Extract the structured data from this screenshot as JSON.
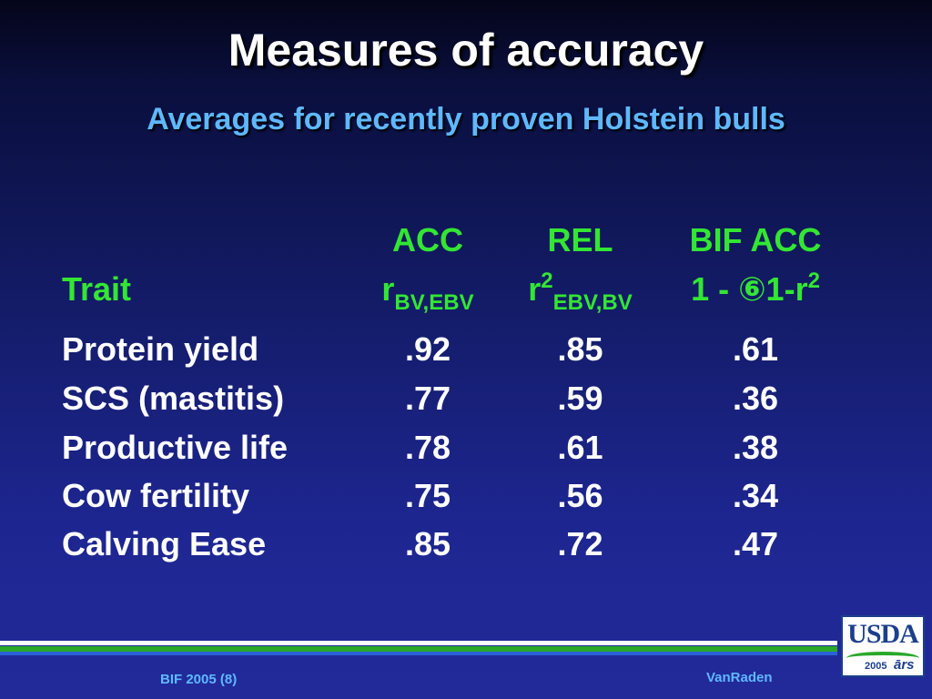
{
  "slide": {
    "title": "Measures of accuracy",
    "subtitle": "Averages for recently proven Holstein bulls"
  },
  "table": {
    "headers": {
      "col1": {
        "line1": "ACC",
        "line2_base": "r",
        "line2_sub": "BV,EBV"
      },
      "col2": {
        "line1": "REL",
        "line2_base": "r",
        "line2_sup": "2",
        "line2_sub": "EBV,BV"
      },
      "col3": {
        "line1": "BIF ACC",
        "line2_base": "1 - ⑥1-r",
        "line2_sup": "2"
      },
      "trait": "Trait"
    },
    "rows": [
      {
        "trait": "Protein yield",
        "acc": ".92",
        "rel": ".85",
        "bif": ".61"
      },
      {
        "trait": "SCS (mastitis)",
        "acc": ".77",
        "rel": ".59",
        "bif": ".36"
      },
      {
        "trait": "Productive life",
        "acc": ".78",
        "rel": ".61",
        "bif": ".38"
      },
      {
        "trait": "Cow fertility",
        "acc": ".75",
        "rel": ".56",
        "bif": ".34"
      },
      {
        "trait": "Calving Ease",
        "acc": ".85",
        "rel": ".72",
        "bif": ".47"
      }
    ]
  },
  "footer": {
    "left": "BIF 2005 (8)",
    "right": "VanRaden"
  },
  "logo": {
    "text": "USDA",
    "year": "2005",
    "ars": "ārs"
  },
  "colors": {
    "title": "#ffffff",
    "subtitle": "#5fb8ff",
    "header": "#33e633",
    "body": "#ffffff"
  }
}
